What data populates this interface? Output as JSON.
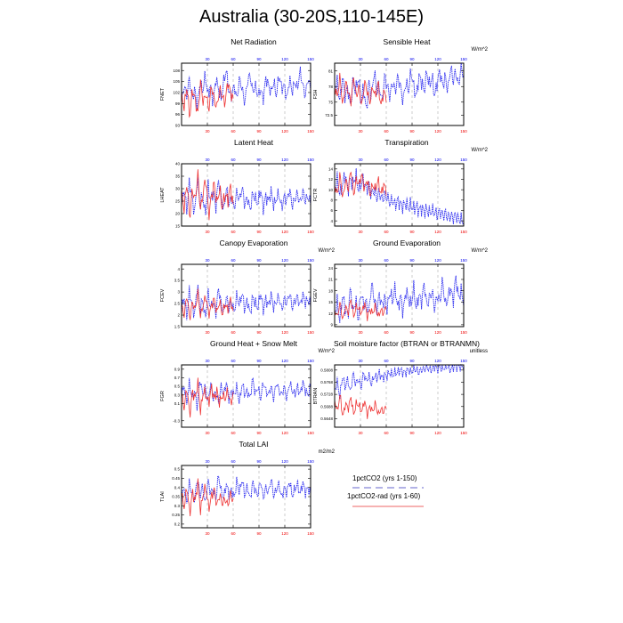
{
  "title": "Australia (30-20S,110-145E)",
  "legend": {
    "items": [
      {
        "label": "1pctCO2 (yrs 1-150)",
        "color": "#2222ee",
        "style": "dashed"
      },
      {
        "label": "1pctCO2-rad (yrs 1-60)",
        "color": "#ee3333",
        "style": "solid"
      }
    ]
  },
  "colors": {
    "blue": "#2222ee",
    "red": "#ee3333",
    "grid": "#999999"
  },
  "chart_data": [
    {
      "type": "line",
      "title": "Net Radiation",
      "units": "",
      "ylabel": "FNET",
      "ylim": [
        93,
        110
      ],
      "yticks": [
        93,
        96,
        99,
        102,
        105,
        108
      ],
      "xlim": [
        0,
        150
      ],
      "xticks_top": [
        30,
        60,
        90,
        120,
        150
      ],
      "xticks_bottom": [
        30,
        60,
        90,
        120,
        150
      ],
      "series": [
        {
          "name": "1pctCO2 (yrs 1-150)",
          "pattern": [
            99,
            104,
            101,
            106,
            100,
            103,
            98,
            105,
            102,
            107,
            101,
            104,
            99,
            106,
            103,
            100,
            105,
            108,
            102,
            101,
            104,
            100,
            106,
            103,
            99,
            105,
            107,
            102,
            104,
            101,
            103,
            100,
            106,
            104,
            102,
            105,
            101,
            107,
            103,
            104,
            100,
            106,
            102,
            105,
            103,
            108,
            104,
            101,
            106,
            103
          ],
          "x_end": 150
        },
        {
          "name": "1pctCO2-rad (yrs 1-60)",
          "pattern": [
            101,
            98,
            104,
            95,
            103,
            100,
            96,
            105,
            99,
            102,
            97,
            104,
            100,
            98,
            103,
            101,
            99,
            105,
            102,
            100
          ],
          "x_end": 60
        }
      ]
    },
    {
      "type": "line",
      "title": "Sensible Heat",
      "units": "W/m^2",
      "ylabel": "FSH",
      "ylim": [
        70.5,
        82.5
      ],
      "yticks": [
        72.5,
        75.0,
        78.0,
        81.0
      ],
      "xlim": [
        0,
        150
      ],
      "xticks_top": [
        30,
        60,
        90,
        120,
        150
      ],
      "xticks_bottom": [
        30,
        60,
        90,
        120,
        150
      ],
      "series": [
        {
          "name": "1pctCO2 (yrs 1-150)",
          "pattern": [
            77,
            79,
            75,
            80,
            76,
            78,
            74,
            79,
            77,
            80,
            75,
            78,
            73,
            79,
            76,
            81,
            77,
            78,
            75,
            80,
            78,
            76,
            79,
            77,
            80,
            78,
            75,
            79,
            77,
            81,
            78,
            76,
            80,
            79,
            77,
            81,
            78,
            80,
            76,
            79,
            81,
            78,
            80,
            77,
            82,
            79,
            81,
            78,
            82,
            80
          ],
          "x_end": 150
        },
        {
          "name": "1pctCO2-rad (yrs 1-60)",
          "pattern": [
            78,
            76,
            80,
            74,
            79,
            77,
            75,
            80,
            76,
            78,
            74,
            79,
            77,
            75,
            78,
            76,
            79,
            74,
            77,
            76
          ],
          "x_end": 60
        }
      ]
    },
    {
      "type": "line",
      "title": "Latent Heat",
      "units": "",
      "ylabel": "LHEAT",
      "ylim": [
        15,
        40
      ],
      "yticks": [
        15,
        20,
        25,
        30,
        35,
        40
      ],
      "xlim": [
        0,
        150
      ],
      "xticks_top": [
        30,
        60,
        90,
        120,
        150
      ],
      "xticks_bottom": [
        30,
        60,
        90,
        120,
        150
      ],
      "series": [
        {
          "name": "1pctCO2 (yrs 1-150)",
          "pattern": [
            24,
            30,
            21,
            33,
            26,
            20,
            35,
            23,
            28,
            19,
            32,
            25,
            29,
            22,
            34,
            27,
            21,
            30,
            24,
            26,
            22,
            29,
            25,
            31,
            23,
            27,
            21,
            28,
            26,
            24,
            30,
            22,
            27,
            25,
            29,
            23,
            26,
            28,
            22,
            27,
            25,
            30,
            23,
            26,
            28,
            24,
            29,
            25,
            27,
            24
          ],
          "x_end": 150
        },
        {
          "name": "1pctCO2-rad (yrs 1-60)",
          "pattern": [
            28,
            22,
            33,
            18,
            30,
            25,
            36,
            21,
            29,
            34,
            19,
            27,
            32,
            24,
            30,
            22,
            28,
            25,
            31,
            23
          ],
          "x_end": 60
        }
      ]
    },
    {
      "type": "line",
      "title": "Transpiration",
      "units": "W/m^2",
      "ylabel": "FCTR",
      "ylim": [
        3,
        15
      ],
      "yticks": [
        4,
        6,
        8,
        10,
        12,
        14
      ],
      "xlim": [
        0,
        150
      ],
      "xticks_top": [
        30,
        60,
        90,
        120,
        150
      ],
      "xticks_bottom": [
        30,
        60,
        90,
        120,
        150
      ],
      "series": [
        {
          "name": "1pctCO2 (yrs 1-150)",
          "pattern": [
            10,
            12,
            9,
            11,
            13,
            10,
            12,
            11,
            13,
            10,
            11,
            12,
            10,
            11,
            9,
            10,
            8.5,
            9.5,
            8,
            9,
            8.5,
            7.5,
            8,
            7,
            8,
            7.2,
            6.8,
            7.5,
            6.5,
            7,
            6.2,
            6.8,
            6,
            6.5,
            5.8,
            6.2,
            5.5,
            6,
            5.6,
            5.2,
            5.8,
            5,
            5.4,
            4.8,
            5,
            4.6,
            5,
            4.4,
            4.2,
            4
          ],
          "x_end": 150
        },
        {
          "name": "1pctCO2-rad (yrs 1-60)",
          "pattern": [
            11,
            9,
            13,
            8,
            12,
            10,
            14,
            9,
            12,
            11,
            13,
            10,
            12,
            9,
            11,
            10,
            12,
            9,
            11,
            10
          ],
          "x_end": 60
        }
      ]
    },
    {
      "type": "line",
      "title": "Canopy Evaporation",
      "units": "W/m^2",
      "ylabel": "FCEV",
      "ylim": [
        1.5,
        4.2
      ],
      "yticks": [
        1.5,
        2.0,
        2.5,
        3.0,
        3.5,
        4.0
      ],
      "xlim": [
        0,
        150
      ],
      "xticks_top": [
        30,
        60,
        90,
        120,
        150
      ],
      "xticks_bottom": [
        30,
        60,
        90,
        120,
        150
      ],
      "series": [
        {
          "name": "1pctCO2 (yrs 1-150)",
          "pattern": [
            2.2,
            2.8,
            1.9,
            3.1,
            2.4,
            2.0,
            3.4,
            2.2,
            2.7,
            1.8,
            3.0,
            2.3,
            2.6,
            2.0,
            3.2,
            2.5,
            2.1,
            2.8,
            2.3,
            2.6,
            2.1,
            2.9,
            2.4,
            3.0,
            2.2,
            2.7,
            2.0,
            2.8,
            2.5,
            2.3,
            3.0,
            2.2,
            2.7,
            2.4,
            2.9,
            2.3,
            2.6,
            2.8,
            2.2,
            2.7,
            2.5,
            3.0,
            2.3,
            2.6,
            2.8,
            2.4,
            2.9,
            2.5,
            2.7,
            2.4
          ],
          "x_end": 150
        },
        {
          "name": "1pctCO2-rad (yrs 1-60)",
          "pattern": [
            2.4,
            2.0,
            2.9,
            1.8,
            2.6,
            2.2,
            3.0,
            1.9,
            2.5,
            2.8,
            2.0,
            2.4,
            2.7,
            2.1,
            2.6,
            2.0,
            2.5,
            2.2,
            2.7,
            2.1
          ],
          "x_end": 60
        }
      ]
    },
    {
      "type": "line",
      "title": "Ground Evaporation",
      "units": "W/m^2",
      "ylabel": "FGEV",
      "ylim": [
        8.5,
        25
      ],
      "yticks": [
        9,
        12,
        15,
        18,
        21,
        24
      ],
      "xlim": [
        0,
        150
      ],
      "xticks_top": [
        30,
        60,
        90,
        120,
        150
      ],
      "xticks_bottom": [
        30,
        60,
        90,
        120,
        150
      ],
      "series": [
        {
          "name": "1pctCO2 (yrs 1-150)",
          "pattern": [
            12,
            15,
            10,
            17,
            13,
            11,
            19,
            12,
            16,
            10,
            18,
            14,
            15,
            12,
            20,
            16,
            13,
            17,
            14,
            16,
            13,
            18,
            15,
            19,
            13,
            17,
            12,
            18,
            16,
            14,
            19,
            13,
            17,
            15,
            20,
            14,
            16,
            18,
            13,
            17,
            15,
            21,
            14,
            16,
            19,
            15,
            22,
            16,
            18,
            15
          ],
          "x_end": 150
        },
        {
          "name": "1pctCO2-rad (yrs 1-60)",
          "pattern": [
            13,
            11,
            15,
            10,
            14,
            12,
            16,
            11,
            14,
            13,
            12,
            15,
            11,
            13,
            12,
            14,
            11,
            13,
            12,
            14
          ],
          "x_end": 60
        }
      ]
    },
    {
      "type": "line",
      "title": "Ground Heat + Snow Melt",
      "units": "W/m^2",
      "ylabel": "FGR",
      "ylim": [
        -0.45,
        1.0
      ],
      "yticks": [
        -0.3,
        0.1,
        0.3,
        0.5,
        0.7,
        0.9
      ],
      "xlim": [
        0,
        150
      ],
      "xticks_top": [
        30,
        60,
        90,
        120,
        150
      ],
      "xticks_bottom": [
        30,
        60,
        90,
        120,
        150
      ],
      "series": [
        {
          "name": "1pctCO2 (yrs 1-150)",
          "pattern": [
            0.3,
            0.5,
            0.1,
            0.6,
            0.2,
            0.4,
            0.0,
            0.7,
            0.3,
            0.5,
            0.1,
            0.6,
            0.2,
            0.4,
            0.1,
            0.5,
            0.3,
            0.6,
            0.2,
            0.4,
            0.3,
            0.5,
            0.1,
            0.6,
            0.3,
            0.4,
            0.2,
            0.7,
            0.3,
            0.5,
            0.2,
            0.6,
            0.4,
            0.3,
            0.5,
            0.2,
            0.6,
            0.4,
            0.3,
            0.5,
            0.2,
            0.6,
            0.4,
            0.3,
            0.5,
            0.3,
            0.6,
            0.4,
            0.3,
            0.5
          ],
          "x_end": 150
        },
        {
          "name": "1pctCO2-rad (yrs 1-60)",
          "pattern": [
            0.3,
            0.0,
            0.5,
            -0.2,
            0.4,
            0.2,
            0.6,
            -0.1,
            0.4,
            0.3,
            0.1,
            0.5,
            0.2,
            0.4,
            0.1,
            0.3,
            0.2,
            0.4,
            0.1,
            0.3
          ],
          "x_end": 60
        }
      ]
    },
    {
      "type": "line",
      "title": "Soil moisture factor (BTRAN or BTRANMN)",
      "units": "unitless",
      "ylabel": "BTRAN",
      "ylim": [
        0.562,
        0.5825
      ],
      "yticks": [
        0.5648,
        0.5688,
        0.5728,
        0.5768,
        0.5808
      ],
      "xlim": [
        0,
        150
      ],
      "xticks_top": [
        30,
        60,
        90,
        120,
        150
      ],
      "xticks_bottom": [
        30,
        60,
        90,
        120,
        150
      ],
      "series": [
        {
          "name": "1pctCO2 (yrs 1-150)",
          "pattern": [
            0.574,
            0.577,
            0.572,
            0.579,
            0.575,
            0.578,
            0.573,
            0.58,
            0.576,
            0.578,
            0.575,
            0.58,
            0.577,
            0.579,
            0.576,
            0.579,
            0.578,
            0.58,
            0.578,
            0.579,
            0.579,
            0.58,
            0.579,
            0.58,
            0.58,
            0.581,
            0.58,
            0.58,
            0.581,
            0.58,
            0.581,
            0.581,
            0.58,
            0.581,
            0.581,
            0.582,
            0.581,
            0.581,
            0.582,
            0.581,
            0.582,
            0.581,
            0.582,
            0.582,
            0.581,
            0.582,
            0.582,
            0.582,
            0.582,
            0.582
          ],
          "x_end": 150
        },
        {
          "name": "1pctCO2-rad (yrs 1-60)",
          "pattern": [
            0.571,
            0.567,
            0.573,
            0.565,
            0.57,
            0.568,
            0.572,
            0.566,
            0.57,
            0.569,
            0.567,
            0.571,
            0.566,
            0.569,
            0.567,
            0.57,
            0.566,
            0.568,
            0.567,
            0.569
          ],
          "x_end": 60
        }
      ]
    },
    {
      "type": "line",
      "title": "Total LAI",
      "units": "m2/m2",
      "ylabel": "TLAI",
      "ylim": [
        0.18,
        0.52
      ],
      "yticks": [
        0.2,
        0.25,
        0.3,
        0.35,
        0.4,
        0.45,
        0.5
      ],
      "xlim": [
        0,
        150
      ],
      "xticks_top": [
        30,
        60,
        90,
        120,
        150
      ],
      "xticks_bottom": [
        30,
        60,
        90,
        120,
        150
      ],
      "series": [
        {
          "name": "1pctCO2 (yrs 1-150)",
          "pattern": [
            0.34,
            0.4,
            0.31,
            0.43,
            0.36,
            0.33,
            0.46,
            0.35,
            0.41,
            0.3,
            0.44,
            0.37,
            0.39,
            0.33,
            0.47,
            0.38,
            0.34,
            0.42,
            0.36,
            0.39,
            0.34,
            0.44,
            0.37,
            0.45,
            0.35,
            0.41,
            0.33,
            0.43,
            0.38,
            0.36,
            0.44,
            0.34,
            0.4,
            0.37,
            0.45,
            0.35,
            0.39,
            0.42,
            0.34,
            0.4,
            0.37,
            0.44,
            0.35,
            0.39,
            0.42,
            0.36,
            0.43,
            0.37,
            0.4,
            0.36
          ],
          "x_end": 150
        },
        {
          "name": "1pctCO2-rad (yrs 1-60)",
          "pattern": [
            0.36,
            0.29,
            0.41,
            0.25,
            0.38,
            0.32,
            0.43,
            0.27,
            0.37,
            0.4,
            0.28,
            0.35,
            0.39,
            0.3,
            0.36,
            0.31,
            0.34,
            0.3,
            0.37,
            0.32
          ],
          "x_end": 60
        }
      ]
    }
  ]
}
